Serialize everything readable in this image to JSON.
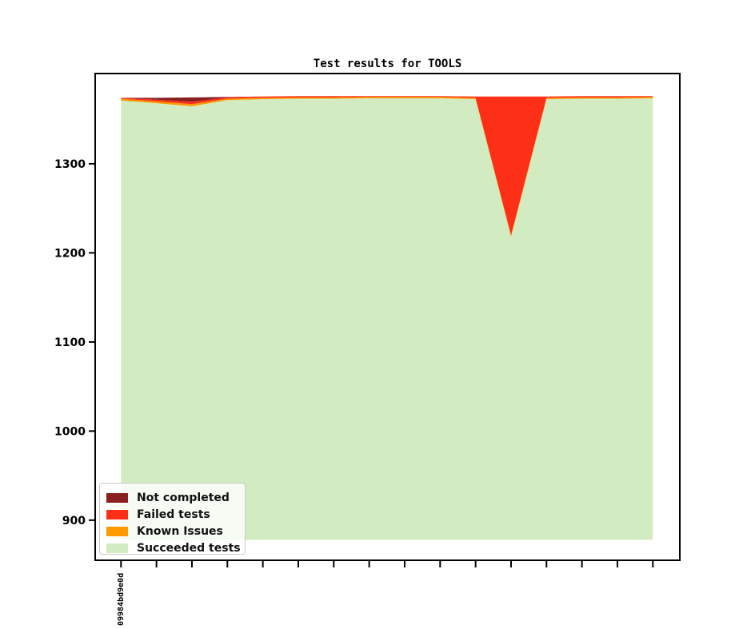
{
  "figure": {
    "background": "#ffffff"
  },
  "legend": {
    "position": "lower left",
    "items": [
      {
        "label": "Not completed",
        "color": "#8a1f1f"
      },
      {
        "label": "Failed tests",
        "color": "#fd2f17"
      },
      {
        "label": "Known Issues",
        "color": "#fe9900"
      },
      {
        "label": "Succeeded tests",
        "color": "#d3ebc1"
      }
    ]
  },
  "chart_data": {
    "type": "area",
    "stacked": true,
    "title": "Test results for TOOLS",
    "xlabel": "",
    "ylabel": "",
    "grid": false,
    "n_points": 16,
    "x_tick_labels": [
      "09984bd9e0d",
      "",
      "",
      "",
      "",
      "",
      "",
      "",
      "",
      "",
      "",
      "",
      "",
      "",
      "",
      ""
    ],
    "yticks": [
      900,
      1000,
      1100,
      1200,
      1300
    ],
    "ylim": [
      855,
      1401
    ],
    "baseline": 878,
    "series": [
      {
        "name": "Succeeded tests",
        "color": "#d3ebc1",
        "top": [
          1371,
          1368,
          1364.5,
          1371.5,
          1372.5,
          1373,
          1373,
          1373.5,
          1373.5,
          1373.5,
          1372.5,
          1218,
          1372.5,
          1373,
          1373,
          1373.5
        ]
      },
      {
        "name": "Known Issues",
        "color": "#fe9900",
        "top": [
          1373,
          1370,
          1367,
          1373,
          1374,
          1374.5,
          1374.5,
          1375,
          1375,
          1375,
          1374,
          1220,
          1374,
          1374.5,
          1374.5,
          1375
        ]
      },
      {
        "name": "Failed tests",
        "color": "#fd2f17",
        "top": [
          1374,
          1372,
          1369.5,
          1374.5,
          1375.5,
          1376,
          1376,
          1376,
          1376,
          1376,
          1375.5,
          1375.5,
          1375.5,
          1376,
          1376,
          1376
        ]
      },
      {
        "name": "Not completed",
        "color": "#8a1f1f",
        "top": [
          1374,
          1374,
          1374.5,
          1375,
          1375.5,
          1376,
          1376,
          1376,
          1376,
          1376,
          1375.5,
          1375.5,
          1375.5,
          1376,
          1376,
          1376
        ]
      }
    ]
  }
}
